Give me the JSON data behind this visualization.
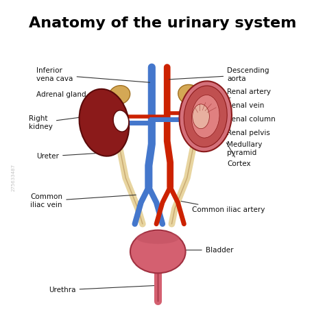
{
  "title": "Anatomy of the urinary system",
  "title_fontsize": 16,
  "labels": {
    "inferior_vena_cava": "Inferior\nvena cava",
    "adrenal_gland": "Adrenal gland",
    "right_kidney": "Right\nkidney",
    "ureter": "Ureter",
    "common_iliac_vein": "Common\niliac vein",
    "descending_aorta": "Descending\naorta",
    "renal_artery": "Renal artery",
    "renal_vein": "Renal vein",
    "renal_column": "Renal column",
    "renal_pelvis": "Renal pelvis",
    "medullary_pyramid": "Medullary\npyramid",
    "cortex": "Cortex",
    "common_iliac_artery": "Common iliac artery",
    "bladder": "Bladder",
    "urethra": "Urethra"
  },
  "colors": {
    "background_color": "#ffffff",
    "kidney_dark": "#8B1A1A",
    "kidney_light": "#C05050",
    "kidney_pink": "#D4707A",
    "kidney_inner": "#E08080",
    "adrenal": "#D4A855",
    "artery_red": "#CC2200",
    "vein_blue": "#4477CC",
    "ureter_tan": "#E8D5A0",
    "bladder": "#D46070",
    "line_color": "#333333",
    "text_color": "#111111"
  }
}
